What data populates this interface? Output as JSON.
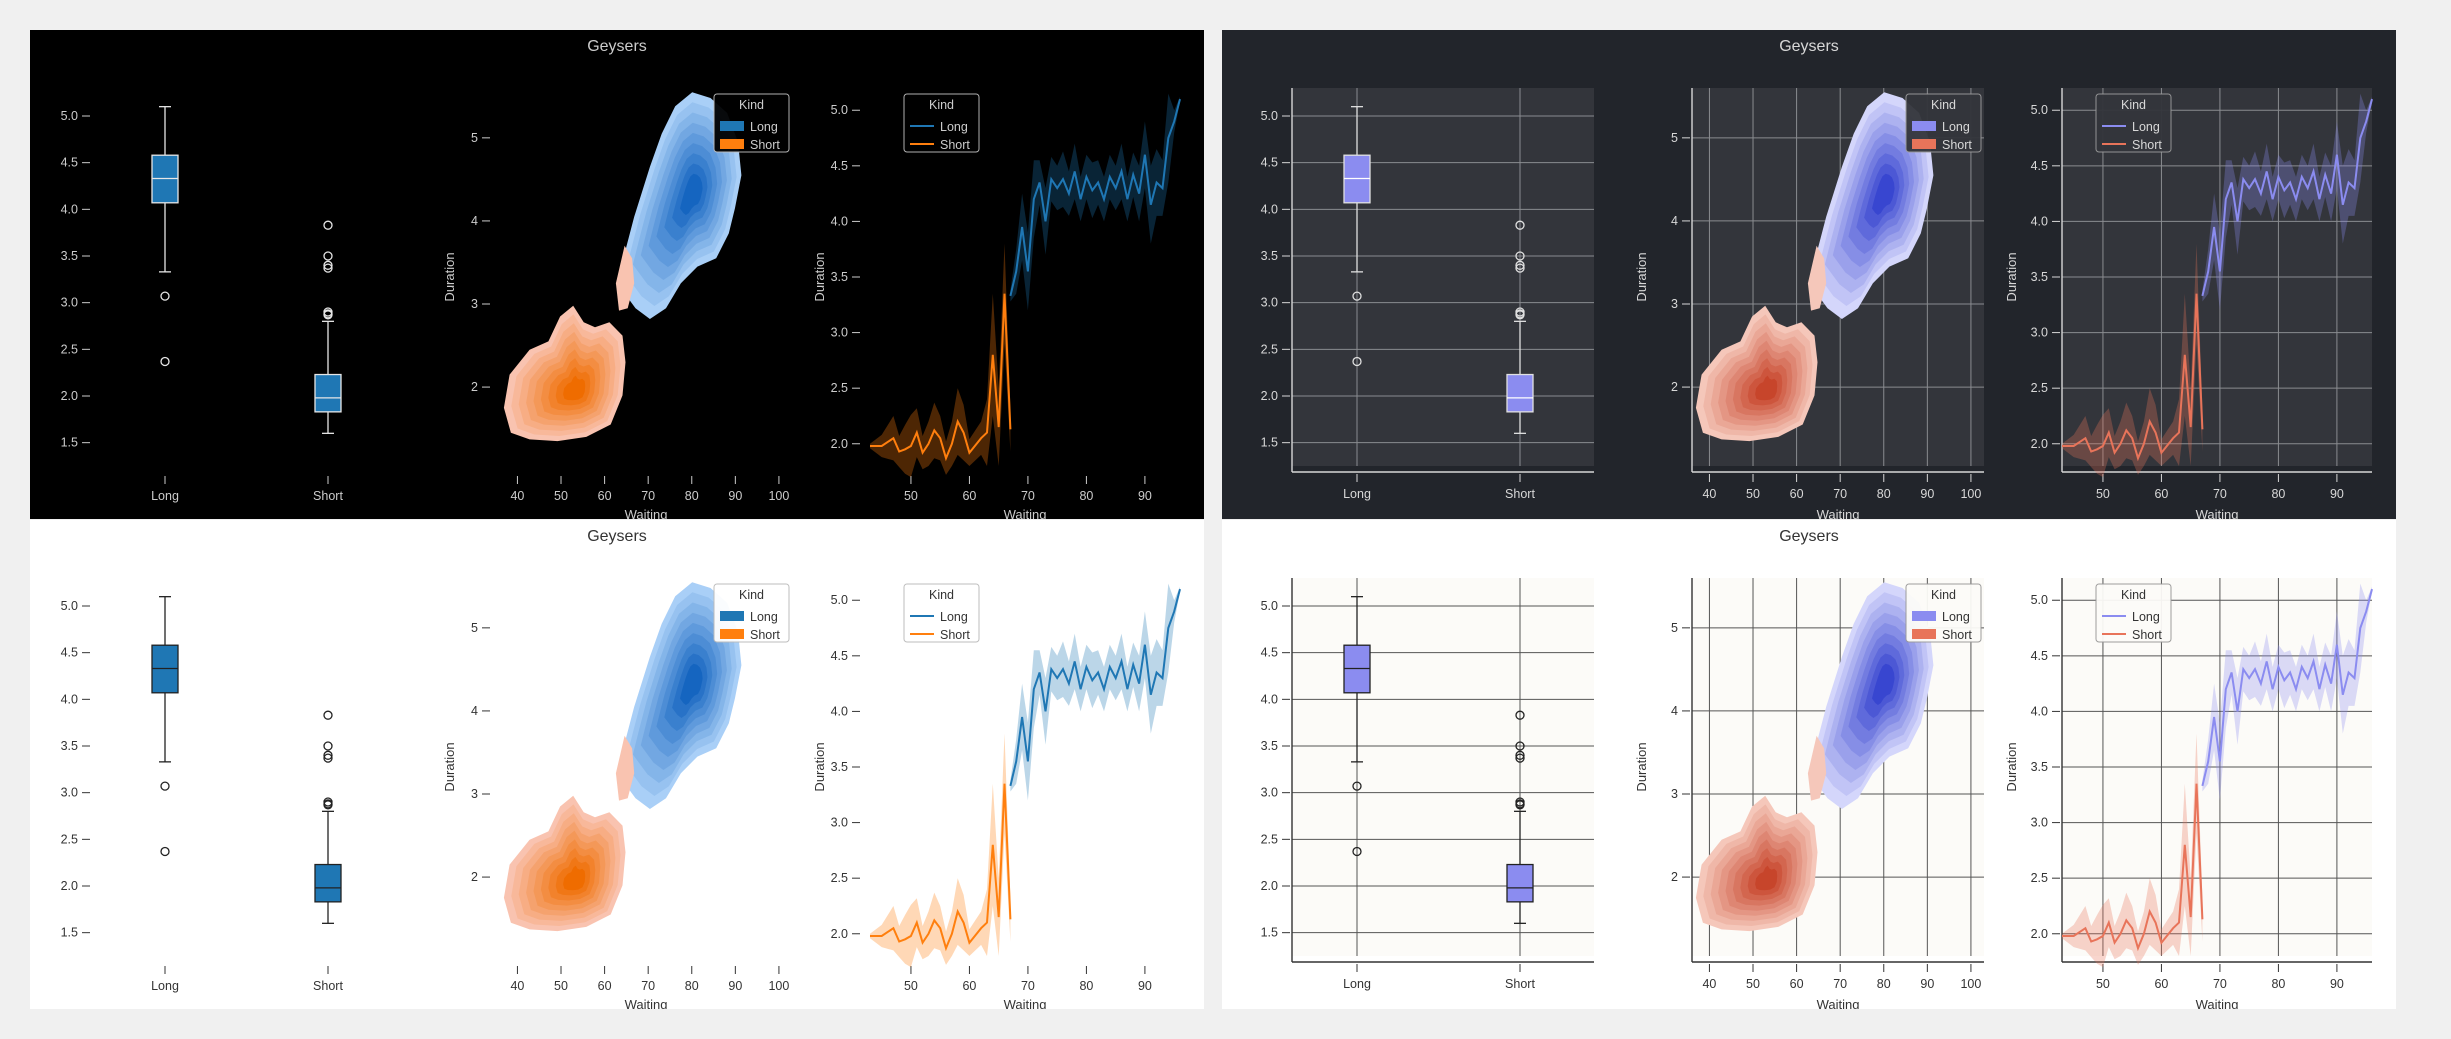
{
  "window": {
    "title": "Geysers"
  },
  "panels": [
    {
      "id": "dark",
      "title": "Geysers",
      "bg": "#000000",
      "ax_bg": "#000000",
      "fg": "#cccccc",
      "grid": false,
      "grid_color": "#555555",
      "long_color": "#1f77b4",
      "short_color": "#ff7f0e",
      "box_edge": "#e6e6e6",
      "box_median": "#e6e6e6",
      "kde_long_lo": "#a9cff7",
      "kde_long_hi": "#1565c0",
      "kde_short_lo": "#f9c3b0",
      "kde_short_hi": "#ef6c00"
    },
    {
      "id": "darkgrid",
      "title": "Geysers",
      "bg": "#22252b",
      "ax_bg": "#33353b",
      "fg": "#d8d8d8",
      "grid": true,
      "grid_color": "#8a8c90",
      "long_color": "#8b8cf0",
      "short_color": "#e8745a",
      "box_edge": "#e0e0e0",
      "box_median": "#ffffff",
      "kde_long_lo": "#d4d6fb",
      "kde_long_hi": "#3846d0",
      "kde_short_lo": "#f5c7ba",
      "kde_short_hi": "#c7452b"
    },
    {
      "id": "light",
      "title": "Geysers",
      "bg": "#ffffff",
      "ax_bg": "#ffffff",
      "fg": "#333333",
      "grid": false,
      "grid_color": "#cccccc",
      "long_color": "#1f77b4",
      "short_color": "#ff7f0e",
      "box_edge": "#222222",
      "box_median": "#222222",
      "kde_long_lo": "#a9cff7",
      "kde_long_hi": "#1565c0",
      "kde_short_lo": "#f9c3b0",
      "kde_short_hi": "#ef6c00"
    },
    {
      "id": "lightgrid",
      "title": "Geysers",
      "bg": "#ffffff",
      "ax_bg": "#fcfbf8",
      "fg": "#333333",
      "grid": true,
      "grid_color": "#555555",
      "long_color": "#8b8cf0",
      "short_color": "#e8745a",
      "box_edge": "#222222",
      "box_median": "#222222",
      "kde_long_lo": "#d4d6fb",
      "kde_long_hi": "#3846d0",
      "kde_short_lo": "#f5c7ba",
      "kde_short_hi": "#c7452b"
    }
  ],
  "chart_data": [
    {
      "type": "box",
      "categories": [
        "Long",
        "Short"
      ],
      "series": [
        {
          "name": "Long",
          "q1": 4.07,
          "median": 4.33,
          "q3": 4.58,
          "whisker_low": 3.33,
          "whisker_high": 5.1,
          "outliers": [
            3.07,
            2.37
          ]
        },
        {
          "name": "Short",
          "q1": 1.83,
          "median": 1.98,
          "q3": 2.23,
          "whisker_low": 1.6,
          "whisker_high": 2.8,
          "outliers": [
            3.83,
            3.5,
            3.4,
            3.37,
            2.9,
            2.88,
            2.87
          ]
        }
      ],
      "ylim": [
        1.25,
        5.3
      ],
      "yticks": [
        1.5,
        2.0,
        2.5,
        3.0,
        3.5,
        4.0,
        4.5,
        5.0
      ]
    },
    {
      "type": "kde",
      "xlabel": "Waiting",
      "ylabel": "Duration",
      "xlim": [
        36,
        103
      ],
      "ylim": [
        1.05,
        5.6
      ],
      "xticks": [
        40,
        50,
        60,
        70,
        80,
        90,
        100
      ],
      "yticks": [
        2,
        3,
        4,
        5
      ],
      "legend": {
        "title": "Kind",
        "entries": [
          "Long",
          "Short"
        ],
        "position": "top-right"
      },
      "series": [
        {
          "name": "Long",
          "center": [
            80.5,
            4.35
          ],
          "spread": [
            8.5,
            0.6
          ],
          "corr": 0.3,
          "blob": [
            [
              62.9,
              3.25
            ],
            [
              64.8,
              3.65
            ],
            [
              66.8,
              4.05
            ],
            [
              70.4,
              4.65
            ],
            [
              73.1,
              5.05
            ],
            [
              76.2,
              5.38
            ],
            [
              80.1,
              5.55
            ],
            [
              84.3,
              5.48
            ],
            [
              88.1,
              5.3
            ],
            [
              90.6,
              4.95
            ],
            [
              91.4,
              4.55
            ],
            [
              89.9,
              4.15
            ],
            [
              88.5,
              3.85
            ],
            [
              85.6,
              3.55
            ],
            [
              81.3,
              3.45
            ],
            [
              77.5,
              3.25
            ],
            [
              74.1,
              2.95
            ],
            [
              70.4,
              2.82
            ],
            [
              67.1,
              2.95
            ]
          ],
          "satellite": [
            [
              64.6,
              3.7
            ],
            [
              66.3,
              3.55
            ],
            [
              66.8,
              3.25
            ],
            [
              65.3,
              2.95
            ],
            [
              63.3,
              2.92
            ],
            [
              62.6,
              3.25
            ]
          ]
        },
        {
          "name": "Short",
          "center": [
            53.5,
            1.95
          ],
          "spread": [
            6.0,
            0.35
          ],
          "corr": 0.25,
          "blob": [
            [
              36.9,
              1.75
            ],
            [
              38.2,
              2.15
            ],
            [
              42.8,
              2.45
            ],
            [
              47.1,
              2.55
            ],
            [
              49.8,
              2.85
            ],
            [
              52.8,
              2.98
            ],
            [
              55.2,
              2.78
            ],
            [
              57.8,
              2.72
            ],
            [
              61.1,
              2.78
            ],
            [
              64.1,
              2.62
            ],
            [
              64.8,
              2.3
            ],
            [
              64.1,
              1.9
            ],
            [
              61.4,
              1.55
            ],
            [
              55.8,
              1.4
            ],
            [
              49.2,
              1.35
            ],
            [
              42.8,
              1.37
            ],
            [
              38.5,
              1.45
            ]
          ]
        }
      ]
    },
    {
      "type": "line",
      "xlabel": "Waiting",
      "ylabel": "Duration",
      "xlim": [
        43,
        96
      ],
      "ylim": [
        1.8,
        5.2
      ],
      "xticks": [
        50,
        60,
        70,
        80,
        90
      ],
      "yticks": [
        2.0,
        2.5,
        3.0,
        3.5,
        4.0,
        4.5,
        5.0
      ],
      "legend": {
        "title": "Kind",
        "entries": [
          "Long",
          "Short"
        ],
        "position": "top-left"
      },
      "series": [
        {
          "name": "Short",
          "x": [
            43,
            45,
            47,
            48,
            49,
            50,
            51,
            52,
            53,
            54,
            55,
            56,
            57,
            58,
            59,
            60,
            62,
            63,
            64,
            65,
            66,
            67
          ],
          "y": [
            1.98,
            1.98,
            2.05,
            1.93,
            1.95,
            1.98,
            2.1,
            1.92,
            2.0,
            2.12,
            2.05,
            1.87,
            2.0,
            2.2,
            2.1,
            1.92,
            2.05,
            2.1,
            2.8,
            2.15,
            3.35,
            2.13
          ],
          "err": [
            0.02,
            0.1,
            0.2,
            0.14,
            0.22,
            0.28,
            0.22,
            0.15,
            0.2,
            0.25,
            0.2,
            0.15,
            0.2,
            0.3,
            0.25,
            0.12,
            0.15,
            0.3,
            0.55,
            0.35,
            0.45,
            0.2
          ]
        },
        {
          "name": "Long",
          "x": [
            67,
            68,
            69,
            70,
            71,
            72,
            73,
            74,
            75,
            76,
            77,
            78,
            79,
            80,
            81,
            82,
            83,
            84,
            85,
            86,
            87,
            88,
            89,
            90,
            91,
            92,
            93,
            94,
            95,
            96
          ],
          "y": [
            3.33,
            3.55,
            3.95,
            3.55,
            4.2,
            4.35,
            4.0,
            4.38,
            4.3,
            4.38,
            4.25,
            4.45,
            4.2,
            4.4,
            4.28,
            4.35,
            4.2,
            4.4,
            4.3,
            4.45,
            4.2,
            4.42,
            4.25,
            4.6,
            4.15,
            4.35,
            4.3,
            4.75,
            4.9,
            5.1
          ],
          "err": [
            0.05,
            0.2,
            0.3,
            0.35,
            0.35,
            0.2,
            0.3,
            0.2,
            0.2,
            0.25,
            0.2,
            0.25,
            0.2,
            0.2,
            0.25,
            0.2,
            0.2,
            0.2,
            0.2,
            0.25,
            0.2,
            0.2,
            0.25,
            0.3,
            0.35,
            0.3,
            0.25,
            0.4,
            0.1,
            0.02
          ]
        }
      ]
    }
  ]
}
